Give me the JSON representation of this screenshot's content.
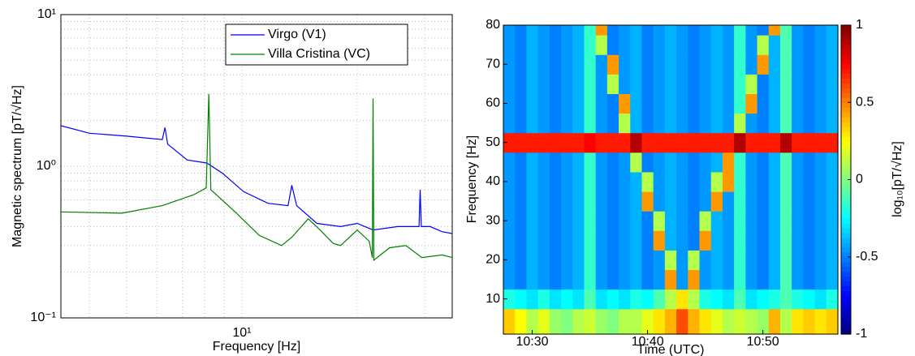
{
  "chart_data": [
    {
      "type": "line",
      "xlabel": "Frequency [Hz]",
      "ylabel": "Magnetic spectrum [pT/√Hz]",
      "xscale": "log",
      "yscale": "log",
      "xlim": [
        3.37,
        35.4
      ],
      "ylim": [
        0.1,
        10
      ],
      "xticks": [
        {
          "value": 10,
          "label": "10¹"
        }
      ],
      "yticks": [
        {
          "value": 0.1,
          "label": "10⁻¹"
        },
        {
          "value": 1,
          "label": "10⁰"
        },
        {
          "value": 10,
          "label": "10¹"
        }
      ],
      "xminorticks": [
        4,
        5,
        6,
        7,
        8,
        9,
        20,
        30
      ],
      "yminorticks": [
        0.2,
        0.3,
        0.4,
        0.5,
        0.6,
        0.7,
        0.8,
        0.9,
        2,
        3,
        4,
        5,
        6,
        7,
        8,
        9
      ],
      "grid": true,
      "legend": "upper right",
      "series": [
        {
          "name": "Virgo (V1)",
          "color": "#0000ff",
          "x": [
            3.37,
            4.0,
            5.0,
            6.2,
            6.3,
            6.4,
            7.2,
            8.1,
            8.9,
            10.1,
            11.7,
            13.2,
            13.5,
            13.9,
            15.7,
            18.1,
            20.0,
            22.0,
            25.5,
            29.0,
            29.2,
            29.4,
            31.0,
            33.3,
            35.4
          ],
          "values": [
            1.85,
            1.65,
            1.58,
            1.5,
            1.8,
            1.4,
            1.1,
            1.05,
            0.9,
            0.68,
            0.57,
            0.55,
            0.75,
            0.55,
            0.42,
            0.4,
            0.42,
            0.38,
            0.4,
            0.4,
            0.7,
            0.4,
            0.4,
            0.37,
            0.36
          ]
        },
        {
          "name": "Villa Cristina (VC)",
          "color": "#007f00",
          "x": [
            3.37,
            4.86,
            6.2,
            7.5,
            8.07,
            8.2,
            8.3,
            9.6,
            11.1,
            12.7,
            13.5,
            14.9,
            16.0,
            17.3,
            18.1,
            20.0,
            21.5,
            21.9,
            22.0,
            22.1,
            24.3,
            26.8,
            29.5,
            33.3,
            35.4
          ],
          "values": [
            0.5,
            0.49,
            0.55,
            0.65,
            0.72,
            3.0,
            0.7,
            0.5,
            0.35,
            0.3,
            0.34,
            0.45,
            0.38,
            0.31,
            0.3,
            0.38,
            0.32,
            0.25,
            2.8,
            0.24,
            0.29,
            0.3,
            0.25,
            0.26,
            0.25
          ]
        }
      ]
    },
    {
      "type": "heatmap",
      "xlabel": "Time (UTC)",
      "ylabel": "Frequency [Hz]",
      "colorbar_label": "log₁₀[pT/√Hz]",
      "colormap": "jet",
      "x": [
        null,
        null,
        "10:30",
        null,
        null,
        null,
        null,
        null,
        null,
        null,
        null,
        null,
        "10:40",
        null,
        null,
        null,
        null,
        null,
        null,
        null,
        null,
        null,
        "10:50",
        null,
        null,
        null,
        null,
        null,
        null
      ],
      "y": [
        5,
        10,
        15,
        20,
        25,
        30,
        35,
        40,
        45,
        50,
        55,
        60,
        65,
        70,
        75,
        80
      ],
      "ylim": [
        1,
        80
      ],
      "yticks": [
        10,
        20,
        30,
        40,
        50,
        60,
        70,
        80
      ],
      "clim": [
        -1,
        1
      ],
      "cticks": [
        -1,
        -0.5,
        0,
        0.5,
        1
      ],
      "z": [
        [
          0.35,
          0.25,
          0.1,
          0.2,
          0.05,
          0.0,
          0.1,
          0.15,
          0.05,
          0.0,
          0.1,
          0.1,
          0.2,
          0.3,
          0.4,
          0.6,
          0.4,
          0.3,
          0.2,
          0.1,
          0.15,
          0.1,
          0.05,
          0.4,
          0.1,
          0.3,
          0.35,
          0.3,
          0.35
        ],
        [
          -0.2,
          -0.25,
          -0.3,
          -0.2,
          -0.3,
          -0.25,
          -0.3,
          -0.1,
          -0.3,
          -0.25,
          -0.3,
          -0.2,
          -0.25,
          -0.1,
          0.1,
          0.3,
          0.1,
          -0.2,
          -0.25,
          -0.3,
          -0.1,
          -0.3,
          -0.25,
          -0.2,
          -0.1,
          -0.2,
          -0.25,
          -0.3,
          -0.2
        ],
        [
          -0.45,
          -0.5,
          -0.4,
          -0.45,
          -0.5,
          -0.45,
          -0.4,
          -0.15,
          -0.45,
          -0.5,
          -0.45,
          -0.4,
          -0.5,
          -0.45,
          0.45,
          -0.45,
          0.45,
          -0.45,
          -0.4,
          -0.45,
          -0.15,
          -0.45,
          -0.5,
          -0.4,
          -0.1,
          -0.45,
          -0.5,
          -0.45,
          -0.4
        ],
        [
          -0.45,
          -0.5,
          -0.4,
          -0.45,
          -0.5,
          -0.45,
          -0.4,
          -0.15,
          -0.45,
          -0.5,
          -0.45,
          -0.4,
          -0.5,
          -0.45,
          0.1,
          -0.45,
          0.1,
          -0.45,
          -0.4,
          -0.45,
          -0.15,
          -0.45,
          -0.5,
          -0.4,
          -0.1,
          -0.45,
          -0.5,
          -0.45,
          -0.4
        ],
        [
          -0.45,
          -0.5,
          -0.4,
          -0.45,
          -0.5,
          -0.45,
          -0.4,
          -0.15,
          -0.45,
          -0.5,
          -0.45,
          -0.4,
          -0.5,
          0.45,
          -0.4,
          -0.45,
          -0.5,
          0.45,
          -0.4,
          -0.45,
          -0.15,
          -0.45,
          -0.5,
          -0.4,
          -0.1,
          -0.45,
          -0.5,
          -0.45,
          -0.4
        ],
        [
          -0.45,
          -0.5,
          -0.4,
          -0.45,
          -0.5,
          -0.45,
          -0.4,
          -0.15,
          -0.45,
          -0.5,
          -0.45,
          -0.4,
          -0.5,
          0.1,
          -0.4,
          -0.45,
          -0.5,
          0.1,
          -0.4,
          -0.45,
          -0.15,
          -0.45,
          -0.5,
          -0.4,
          -0.1,
          -0.45,
          -0.5,
          -0.45,
          -0.4
        ],
        [
          -0.45,
          -0.5,
          -0.4,
          -0.45,
          -0.5,
          -0.45,
          -0.4,
          -0.15,
          -0.45,
          -0.5,
          -0.45,
          -0.4,
          0.45,
          -0.45,
          -0.4,
          -0.45,
          -0.5,
          -0.45,
          0.45,
          -0.45,
          -0.15,
          -0.45,
          -0.5,
          -0.4,
          -0.1,
          -0.45,
          -0.5,
          -0.45,
          -0.4
        ],
        [
          -0.45,
          -0.5,
          -0.4,
          -0.45,
          -0.5,
          -0.45,
          -0.4,
          -0.15,
          -0.45,
          -0.5,
          -0.45,
          -0.4,
          0.1,
          -0.45,
          -0.4,
          -0.45,
          -0.5,
          -0.45,
          0.1,
          0.45,
          -0.15,
          -0.45,
          -0.5,
          -0.4,
          -0.1,
          -0.45,
          -0.5,
          -0.45,
          -0.4
        ],
        [
          -0.45,
          -0.5,
          -0.4,
          -0.45,
          -0.5,
          -0.45,
          -0.4,
          -0.15,
          -0.45,
          -0.5,
          -0.45,
          0.1,
          -0.5,
          -0.45,
          -0.4,
          -0.45,
          -0.5,
          -0.45,
          -0.4,
          0.45,
          -0.15,
          -0.45,
          -0.5,
          -0.4,
          -0.1,
          -0.45,
          -0.5,
          -0.45,
          -0.4
        ],
        [
          0.7,
          0.7,
          0.7,
          0.7,
          0.7,
          0.7,
          0.7,
          0.75,
          0.7,
          0.7,
          0.7,
          0.9,
          0.7,
          0.7,
          0.7,
          0.7,
          0.7,
          0.7,
          0.7,
          0.7,
          0.9,
          0.7,
          0.7,
          0.7,
          0.9,
          0.7,
          0.7,
          0.7,
          0.7
        ],
        [
          -0.45,
          -0.5,
          -0.4,
          -0.45,
          -0.5,
          -0.45,
          -0.4,
          -0.15,
          -0.45,
          -0.5,
          0.1,
          -0.4,
          -0.5,
          -0.45,
          -0.4,
          -0.45,
          -0.5,
          -0.45,
          -0.4,
          -0.45,
          0.1,
          -0.45,
          -0.5,
          -0.4,
          -0.1,
          -0.45,
          -0.5,
          -0.45,
          -0.4
        ],
        [
          -0.45,
          -0.5,
          -0.4,
          -0.45,
          -0.5,
          -0.45,
          -0.4,
          -0.15,
          -0.45,
          -0.5,
          0.45,
          -0.4,
          -0.5,
          -0.45,
          -0.4,
          -0.45,
          -0.5,
          -0.45,
          -0.4,
          -0.45,
          -0.15,
          0.45,
          -0.5,
          -0.4,
          -0.1,
          -0.45,
          -0.5,
          -0.45,
          -0.4
        ],
        [
          -0.45,
          -0.5,
          -0.4,
          -0.45,
          -0.5,
          -0.45,
          -0.4,
          -0.15,
          -0.45,
          0.1,
          -0.45,
          -0.4,
          -0.5,
          -0.45,
          -0.4,
          -0.45,
          -0.5,
          -0.45,
          -0.4,
          -0.45,
          -0.15,
          0.1,
          -0.5,
          -0.4,
          -0.1,
          -0.45,
          -0.5,
          -0.45,
          -0.4
        ],
        [
          -0.45,
          -0.5,
          -0.4,
          -0.45,
          -0.5,
          -0.45,
          -0.4,
          -0.15,
          -0.45,
          0.45,
          -0.45,
          -0.4,
          -0.5,
          -0.45,
          -0.4,
          -0.45,
          -0.5,
          -0.45,
          -0.4,
          -0.45,
          -0.15,
          -0.45,
          0.45,
          -0.4,
          -0.1,
          -0.45,
          -0.5,
          -0.45,
          -0.4
        ],
        [
          -0.45,
          -0.5,
          -0.4,
          -0.45,
          -0.5,
          -0.45,
          -0.4,
          -0.15,
          0.1,
          -0.5,
          -0.45,
          -0.4,
          -0.5,
          -0.45,
          -0.4,
          -0.45,
          -0.5,
          -0.45,
          -0.4,
          -0.45,
          -0.15,
          -0.45,
          0.1,
          -0.4,
          -0.1,
          -0.45,
          -0.5,
          -0.45,
          -0.4
        ],
        [
          -0.45,
          -0.5,
          -0.4,
          -0.45,
          -0.5,
          -0.45,
          -0.4,
          -0.15,
          0.45,
          -0.5,
          -0.45,
          -0.4,
          -0.5,
          -0.45,
          -0.4,
          -0.45,
          -0.5,
          -0.45,
          -0.4,
          -0.45,
          -0.15,
          -0.45,
          -0.5,
          0.45,
          -0.1,
          -0.45,
          -0.5,
          -0.45,
          -0.4
        ]
      ]
    }
  ]
}
